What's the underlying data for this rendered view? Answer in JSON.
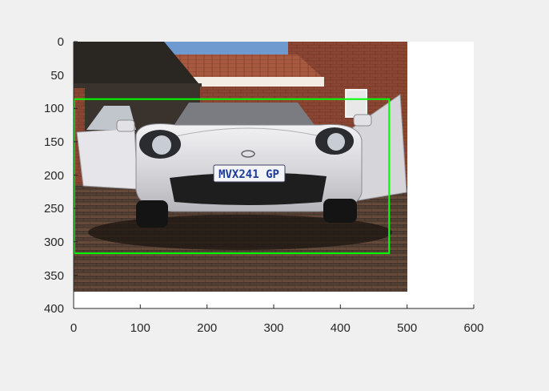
{
  "figure": {
    "background": "#f0f0f0",
    "axes_background": "#ffffff",
    "axis_color": "#262626"
  },
  "axes": {
    "x_ticks": [
      "0",
      "100",
      "200",
      "300",
      "400",
      "500",
      "600"
    ],
    "y_ticks": [
      "0",
      "50",
      "100",
      "150",
      "200",
      "250",
      "300",
      "350",
      "400"
    ],
    "xlim": [
      0,
      600
    ],
    "ylim": [
      0,
      400
    ],
    "y_direction": "reversed (0 at top)",
    "grid": false
  },
  "image": {
    "extent_x": [
      0,
      500
    ],
    "extent_y": [
      0,
      375
    ],
    "subject": "silver convertible car with open doors, brick house background, paved driveway",
    "plate_text": "MVX241 GP",
    "colors": {
      "sky": "#6e9ad0",
      "brick": "#8a4632",
      "roof_tile": "#a85a40",
      "car_body": "#d8d8dc",
      "grille": "#1e1e1e",
      "paving": "#5a4336",
      "plate_text": "#1e3c96"
    }
  },
  "bounding_box": {
    "x_range": [
      0,
      472
    ],
    "y_range": [
      86,
      317
    ],
    "color": "#00ff00"
  }
}
